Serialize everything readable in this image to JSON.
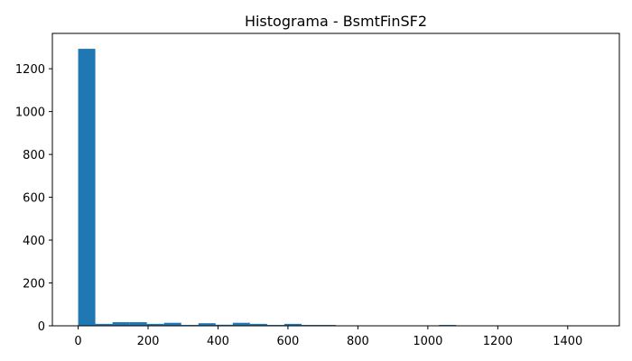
{
  "chart_data": {
    "type": "bar",
    "title": "Histograma - BsmtFinSF2",
    "xlabel": "",
    "ylabel": "",
    "xlim": [
      -73.7,
      1547.7
    ],
    "ylim": [
      0,
      1365
    ],
    "xticks": [
      0,
      200,
      400,
      600,
      800,
      1000,
      1200,
      1400
    ],
    "yticks": [
      0,
      200,
      400,
      600,
      800,
      1000,
      1200
    ],
    "grid": false,
    "bar_color": "#1f77b4",
    "bins": [
      {
        "x0": 0,
        "x1": 49.13,
        "value": 1293
      },
      {
        "x0": 49.13,
        "x1": 98.27,
        "value": 9
      },
      {
        "x0": 98.27,
        "x1": 147.4,
        "value": 17
      },
      {
        "x0": 147.4,
        "x1": 196.53,
        "value": 17
      },
      {
        "x0": 196.53,
        "x1": 245.67,
        "value": 9
      },
      {
        "x0": 245.67,
        "x1": 294.8,
        "value": 14
      },
      {
        "x0": 294.8,
        "x1": 343.93,
        "value": 4
      },
      {
        "x0": 343.93,
        "x1": 393.07,
        "value": 12
      },
      {
        "x0": 393.07,
        "x1": 442.2,
        "value": 5
      },
      {
        "x0": 442.2,
        "x1": 491.33,
        "value": 14
      },
      {
        "x0": 491.33,
        "x1": 540.47,
        "value": 9
      },
      {
        "x0": 540.47,
        "x1": 589.6,
        "value": 4
      },
      {
        "x0": 589.6,
        "x1": 638.73,
        "value": 9
      },
      {
        "x0": 638.73,
        "x1": 687.87,
        "value": 4
      },
      {
        "x0": 687.87,
        "x1": 737.0,
        "value": 4
      },
      {
        "x0": 737.0,
        "x1": 786.13,
        "value": 1
      },
      {
        "x0": 786.13,
        "x1": 835.27,
        "value": 1
      },
      {
        "x0": 835.27,
        "x1": 884.4,
        "value": 0
      },
      {
        "x0": 884.4,
        "x1": 933.53,
        "value": 0
      },
      {
        "x0": 933.53,
        "x1": 982.67,
        "value": 0
      },
      {
        "x0": 982.67,
        "x1": 1031.8,
        "value": 1
      },
      {
        "x0": 1031.8,
        "x1": 1080.93,
        "value": 4
      },
      {
        "x0": 1080.93,
        "x1": 1130.07,
        "value": 1
      },
      {
        "x0": 1130.07,
        "x1": 1179.2,
        "value": 0
      },
      {
        "x0": 1179.2,
        "x1": 1228.33,
        "value": 0
      },
      {
        "x0": 1228.33,
        "x1": 1277.47,
        "value": 0
      },
      {
        "x0": 1277.47,
        "x1": 1326.6,
        "value": 0
      },
      {
        "x0": 1326.6,
        "x1": 1375.73,
        "value": 0
      },
      {
        "x0": 1375.73,
        "x1": 1424.87,
        "value": 0
      },
      {
        "x0": 1424.87,
        "x1": 1474.0,
        "value": 1
      }
    ]
  }
}
